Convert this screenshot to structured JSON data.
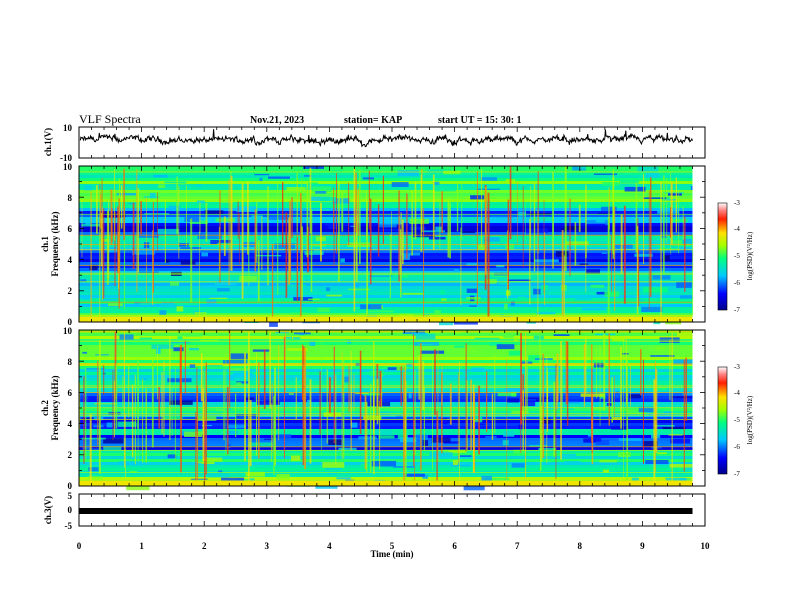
{
  "header": {
    "title": "VLF Spectra",
    "date": "Nov.21, 2023",
    "station": "station= KAP",
    "start": "start  UT =   15: 30: 1"
  },
  "chart_data": [
    {
      "type": "line",
      "name": "ch1-waveform",
      "ylabel": "ch.1(V)",
      "ylim": [
        -10,
        10
      ],
      "yticks": [
        "10",
        "-10"
      ],
      "xlim": [
        0,
        10
      ],
      "baseline": 1.5,
      "amplitude": 2.5,
      "end_min": 9.8
    },
    {
      "type": "heatmap",
      "name": "ch1-spectrogram",
      "ylabel": "ch.1\nFrequency (kHz)",
      "ylabel_lines": [
        "ch.1",
        "Frequency  (kHz)"
      ],
      "ylim": [
        0,
        10
      ],
      "yticks": [
        "0",
        "2",
        "4",
        "6",
        "8",
        "10"
      ],
      "xlim": [
        0,
        10
      ],
      "end_min": 9.8,
      "dark_bands_khz": [
        [
          5.6,
          6.3
        ],
        [
          6.8,
          7.2
        ],
        [
          3.2,
          4.6
        ]
      ],
      "colorbar": {
        "label": "log(PSD)(V²/Hz)",
        "ticks": [
          "-3",
          "-4",
          "-5",
          "-6",
          "-7"
        ],
        "range": [
          -7,
          -3
        ]
      }
    },
    {
      "type": "heatmap",
      "name": "ch2-spectrogram",
      "ylabel": "ch.2\nFrequency (kHz)",
      "ylabel_lines": [
        "ch.2",
        "Frequency  (kHz)"
      ],
      "ylim": [
        0,
        10
      ],
      "yticks": [
        "0",
        "2",
        "4",
        "6",
        "8",
        "10"
      ],
      "xlim": [
        0,
        10
      ],
      "end_min": 9.8,
      "dark_bands_khz": [
        [
          5.3,
          5.9
        ],
        [
          3.6,
          4.4
        ],
        [
          2.4,
          3.2
        ]
      ],
      "colorbar": {
        "label": "log(PSD)(V²/Hz)",
        "ticks": [
          "-3",
          "-4",
          "-5",
          "-6",
          "-7"
        ],
        "range": [
          -7,
          -3
        ]
      }
    },
    {
      "type": "line",
      "name": "ch3-trace",
      "ylabel": "ch.3(V)",
      "ylim": [
        -5,
        5
      ],
      "yticks": [
        "5",
        "0",
        "-5"
      ],
      "xlim": [
        0,
        10
      ],
      "xticks": [
        "0",
        "1",
        "2",
        "3",
        "4",
        "5",
        "6",
        "7",
        "8",
        "9",
        "10"
      ],
      "xlabel": "Time  (min)",
      "level": 0,
      "end_min": 9.8
    }
  ]
}
